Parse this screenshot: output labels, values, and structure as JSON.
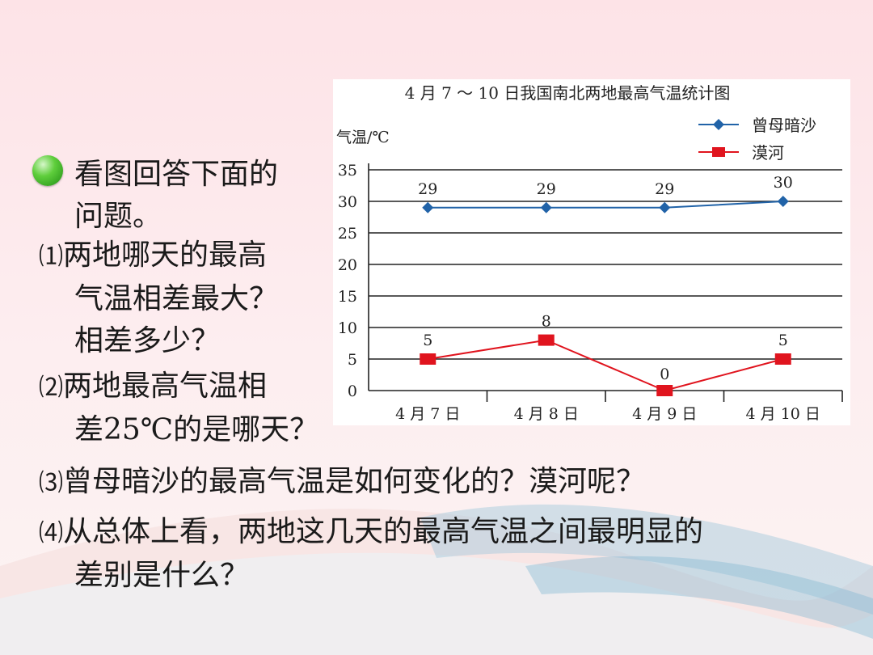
{
  "intro": {
    "line1": "看图回答下面的",
    "line2": "问题。"
  },
  "questions": [
    {
      "num": "⑴",
      "lines": [
        "两地哪天的最高",
        "气温相差最大？",
        "相差多少？"
      ]
    },
    {
      "num": "⑵",
      "lines": [
        "两地最高气温相",
        "差25℃的是哪天？"
      ]
    },
    {
      "num": "⑶",
      "lines": [
        "曾母暗沙的最高气温是如何变化的？漠河呢？"
      ]
    },
    {
      "num": "⑷",
      "lines": [
        "从总体上看，两地这几天的最高气温之间最明显的",
        "差别是什么？"
      ]
    }
  ],
  "chart_data": {
    "type": "line",
    "title": "4 月 7 ～ 10 日我国南北两地最高气温统计图",
    "ylabel": "气温/℃",
    "xlabel": "",
    "categories": [
      "4 月 7 日",
      "4 月 8 日",
      "4 月 9 日",
      "4 月 10 日"
    ],
    "ylim": [
      0,
      35
    ],
    "yticks": [
      0,
      5,
      10,
      15,
      20,
      25,
      30,
      35
    ],
    "grid": true,
    "legend_position": "top-right",
    "series": [
      {
        "name": "曾母暗沙",
        "values": [
          29,
          29,
          29,
          30
        ],
        "color": "#2163a8",
        "marker": "diamond"
      },
      {
        "name": "漠河",
        "values": [
          5,
          8,
          0,
          5
        ],
        "color": "#e0141e",
        "marker": "square"
      }
    ]
  }
}
